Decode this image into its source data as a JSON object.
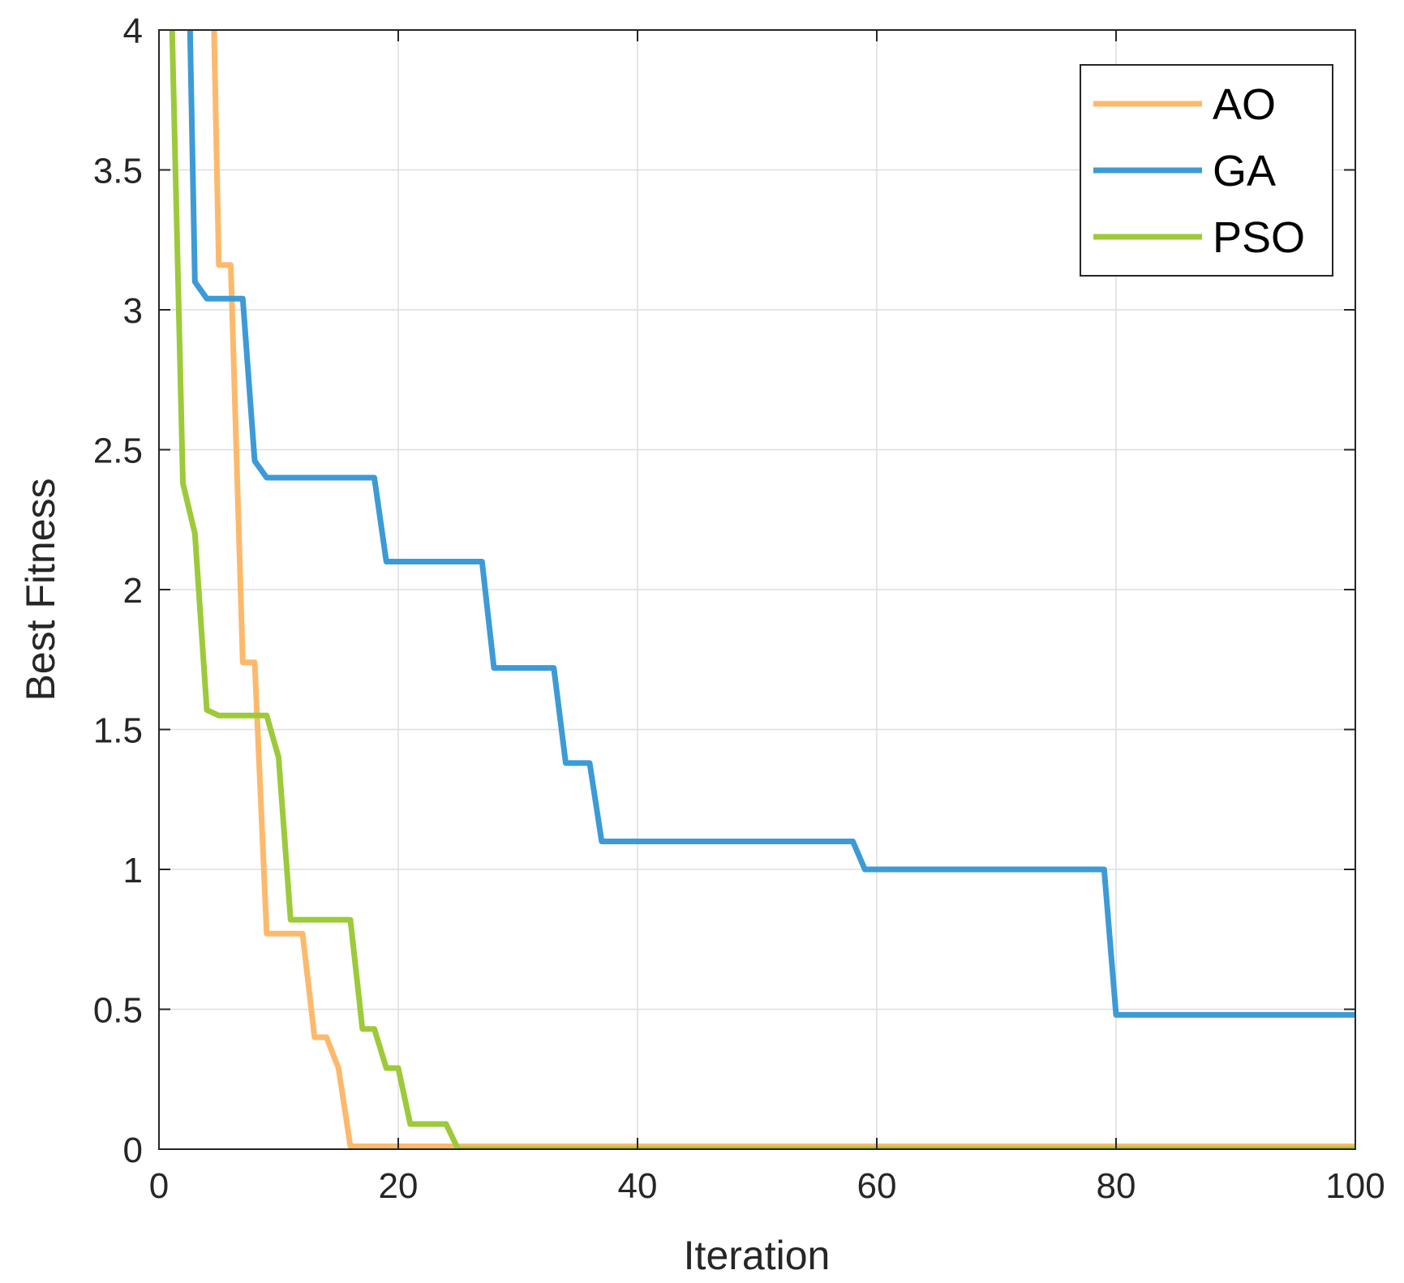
{
  "chart_data": {
    "type": "line",
    "title": "",
    "xlabel": "Iteration",
    "ylabel": "Best Fitness",
    "xlim": [
      0,
      100
    ],
    "ylim": [
      0,
      4
    ],
    "xticks": [
      0,
      20,
      40,
      60,
      80,
      100
    ],
    "xtick_labels": [
      "0",
      "20",
      "40",
      "60",
      "80",
      "100"
    ],
    "yticks": [
      0,
      0.5,
      1,
      1.5,
      2,
      2.5,
      3,
      3.5,
      4
    ],
    "ytick_labels": [
      "0",
      "0.5",
      "1",
      "1.5",
      "2",
      "2.5",
      "3",
      "3.5",
      "4"
    ],
    "grid": true,
    "legend_position": "top-right",
    "series": [
      {
        "name": "AO",
        "color": "#FDB96B",
        "points": [
          [
            4.6,
            4.0
          ],
          [
            5,
            3.16
          ],
          [
            6,
            3.16
          ],
          [
            7,
            1.74
          ],
          [
            8,
            1.74
          ],
          [
            9,
            0.77
          ],
          [
            12,
            0.77
          ],
          [
            13,
            0.4
          ],
          [
            14,
            0.4
          ],
          [
            15,
            0.29
          ],
          [
            16,
            0.01
          ],
          [
            100,
            0.01
          ]
        ]
      },
      {
        "name": "GA",
        "color": "#3C9BD6",
        "points": [
          [
            2.6,
            4.0
          ],
          [
            3,
            3.1
          ],
          [
            4,
            3.04
          ],
          [
            7,
            3.04
          ],
          [
            8,
            2.46
          ],
          [
            9,
            2.4
          ],
          [
            18,
            2.4
          ],
          [
            19,
            2.1
          ],
          [
            27,
            2.1
          ],
          [
            28,
            1.72
          ],
          [
            33,
            1.72
          ],
          [
            34,
            1.38
          ],
          [
            36,
            1.38
          ],
          [
            37,
            1.1
          ],
          [
            58,
            1.1
          ],
          [
            59,
            1.0
          ],
          [
            79,
            1.0
          ],
          [
            80,
            0.48
          ],
          [
            100,
            0.48
          ]
        ]
      },
      {
        "name": "PSO",
        "color": "#9DCA3A",
        "points": [
          [
            1.1,
            4.0
          ],
          [
            2,
            2.38
          ],
          [
            3,
            2.2
          ],
          [
            4,
            1.57
          ],
          [
            5,
            1.55
          ],
          [
            9,
            1.55
          ],
          [
            10,
            1.4
          ],
          [
            11,
            0.82
          ],
          [
            16,
            0.82
          ],
          [
            17,
            0.43
          ],
          [
            18,
            0.43
          ],
          [
            19,
            0.29
          ],
          [
            20,
            0.29
          ],
          [
            21,
            0.09
          ],
          [
            24,
            0.09
          ],
          [
            25,
            0.0
          ],
          [
            100,
            0.0
          ]
        ]
      }
    ]
  }
}
